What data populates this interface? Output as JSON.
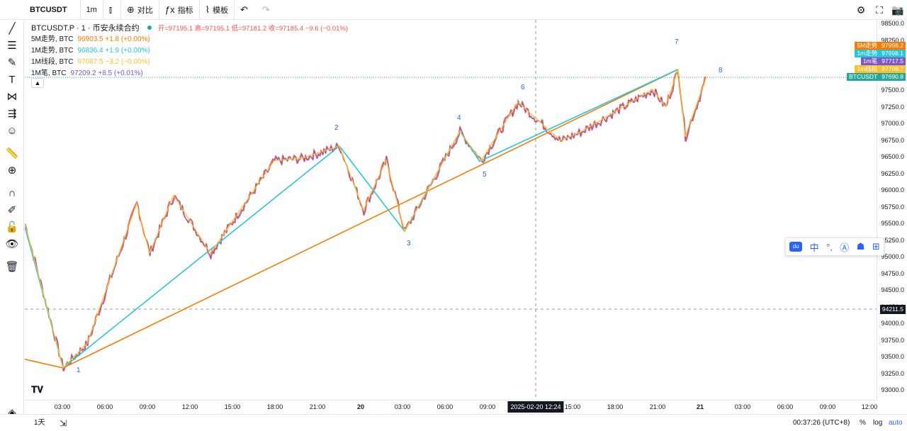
{
  "toolbar": {
    "symbol": "BTCUSDT",
    "interval": "1m",
    "chart_type_icon": "candles-icon",
    "compare_label": "对比",
    "indicators_label": "指标",
    "templates_label": "模板"
  },
  "legend": {
    "main_title": "BTCUSDT.P · 1 · 币安永续合约",
    "ohlc": "开=97195.1  高=97195.1  低=97181.2  收=97185.4  −9.6 (−0.01%)",
    "series": [
      {
        "name": "5M走势, BTC",
        "value": "96903.5  +1.8 (+0.00%)",
        "color": "#f57c00"
      },
      {
        "name": "1M走势, BTC",
        "value": "96836.4  +1.9 (+0.00%)",
        "color": "#26c6da"
      },
      {
        "name": "1M线段, BTC",
        "value": "97087.5  −3.2 (−0.00%)",
        "color": "#fbc02d"
      },
      {
        "name": "1M笔, BTC",
        "value": "97209.2  +8.5 (+0.01%)",
        "color": "#7e57c2"
      }
    ],
    "main_color": "#ef5350"
  },
  "chart_data": {
    "type": "line",
    "price_ticks": [
      "98500.0",
      "98250.0",
      "98000.0",
      "97750.0",
      "97500.0",
      "97250.0",
      "97000.0",
      "96750.0",
      "96500.0",
      "96250.0",
      "96000.0",
      "95750.0",
      "95500.0",
      "95250.0",
      "95000.0",
      "94750.0",
      "94500.0",
      "94250.0",
      "94000.0",
      "93750.0",
      "93500.0",
      "93250.0",
      "93000.0"
    ],
    "time_ticks": [
      "03:00",
      "06:00",
      "09:00",
      "12:00",
      "15:00",
      "18:00",
      "21:00",
      "20",
      "03:00",
      "06:00",
      "09:00",
      "15:00",
      "18:00",
      "21:00",
      "21",
      "03:00",
      "06:00",
      "09:00",
      "12:00"
    ],
    "crosshair_time": "2025-02-20   12:24",
    "crosshair_price": "94211.5",
    "wave_labels": [
      "1",
      "2",
      "3",
      "4",
      "5",
      "6",
      "7",
      "8"
    ],
    "series": [
      {
        "name": "5M走势",
        "color": "#f57c00",
        "points": [
          [
            0,
            93460
          ],
          [
            54,
            93330
          ],
          [
            922,
            97810
          ]
        ]
      },
      {
        "name": "1m走势",
        "color": "#26c6da",
        "points": [
          [
            0,
            95450
          ],
          [
            54,
            93330
          ],
          [
            444,
            96660
          ],
          [
            536,
            95380
          ],
          [
            614,
            96880
          ],
          [
            642,
            96430
          ],
          [
            922,
            97810
          ]
        ]
      },
      {
        "name": "1m线段",
        "color": "#fbc02d",
        "points": [
          [
            0,
            95500
          ],
          [
            54,
            93330
          ],
          [
            88,
            93700
          ],
          [
            158,
            95800
          ],
          [
            176,
            95050
          ],
          [
            210,
            95920
          ],
          [
            262,
            95050
          ],
          [
            352,
            96440
          ],
          [
            392,
            96480
          ],
          [
            444,
            96660
          ],
          [
            478,
            95700
          ],
          [
            510,
            96450
          ],
          [
            536,
            95380
          ],
          [
            614,
            96880
          ],
          [
            644,
            96440
          ],
          [
            696,
            97320
          ],
          [
            756,
            96740
          ],
          [
            786,
            96880
          ],
          [
            886,
            97510
          ],
          [
            904,
            97250
          ],
          [
            922,
            97810
          ],
          [
            932,
            96800
          ],
          [
            962,
            97700
          ]
        ]
      }
    ],
    "tags": [
      {
        "name": "5M走势",
        "value": "97998.2",
        "color": "#f57c00"
      },
      {
        "name": "1m走势",
        "value": "97998.1",
        "color": "#26c6da"
      },
      {
        "name": "1m笔",
        "value": "97717.5",
        "color": "#7e57c2"
      },
      {
        "name": "1m线段",
        "value": "97706.7",
        "color": "#fbc02d"
      },
      {
        "name": "BTCUSDT",
        "value": "97690.8",
        "color": "#26a69a"
      }
    ]
  },
  "bottom": {
    "range": "1天",
    "clock": "00:37:26 (UTC+8)",
    "percent": "%",
    "log": "log",
    "auto": "auto"
  },
  "floatbar": {
    "logo": "du",
    "lang": "中"
  }
}
